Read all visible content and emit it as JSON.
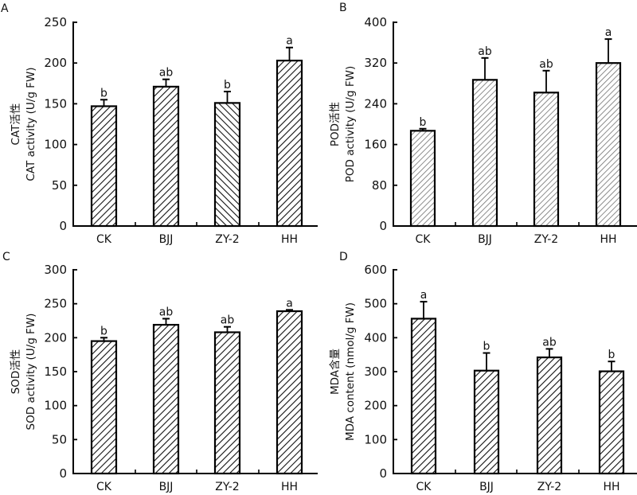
{
  "chart_data": [
    {
      "type": "bar",
      "panel": "A",
      "title": "",
      "categories": [
        "CK",
        "BJJ",
        "ZY-2",
        "HH"
      ],
      "values": [
        147,
        171,
        151,
        203
      ],
      "error_upper": [
        155,
        180,
        165,
        219
      ],
      "significance": [
        "b",
        "ab",
        "b",
        "a"
      ],
      "xlabel": "",
      "ylabel_cn": "CAT活性",
      "ylabel": "CAT activity (U/g FW)",
      "ylim": [
        0,
        250
      ],
      "yticks": [
        0,
        50,
        100,
        150,
        200,
        250
      ],
      "hatch": [
        "back",
        "back",
        "forward",
        "back"
      ],
      "hatch_color": "#111111",
      "grid": false,
      "legend": "none"
    },
    {
      "type": "bar",
      "panel": "B",
      "title": "",
      "categories": [
        "CK",
        "BJJ",
        "ZY-2",
        "HH"
      ],
      "values": [
        187,
        287,
        262,
        320
      ],
      "error_upper": [
        191,
        330,
        305,
        367
      ],
      "significance": [
        "b",
        "ab",
        "ab",
        "a"
      ],
      "xlabel": "",
      "ylabel_cn": "POD活性",
      "ylabel": "POD activity (U/g FW)",
      "ylim": [
        0,
        400
      ],
      "yticks": [
        0,
        80,
        160,
        240,
        320,
        400
      ],
      "hatch": [
        "back",
        "back",
        "back",
        "back"
      ],
      "hatch_color": "#777777",
      "grid": false,
      "legend": "none"
    },
    {
      "type": "bar",
      "panel": "C",
      "title": "",
      "categories": [
        "CK",
        "BJJ",
        "ZY-2",
        "HH"
      ],
      "values": [
        195,
        219,
        208,
        239
      ],
      "error_upper": [
        200,
        228,
        216,
        241
      ],
      "significance": [
        "b",
        "ab",
        "ab",
        "a"
      ],
      "xlabel": "",
      "ylabel_cn": "SOD活性",
      "ylabel": "SOD activity (U/g FW)",
      "ylim": [
        0,
        300
      ],
      "yticks": [
        0,
        50,
        100,
        150,
        200,
        250,
        300
      ],
      "hatch": [
        "back",
        "back",
        "back",
        "back"
      ],
      "hatch_color": "#111111",
      "grid": false,
      "legend": "none"
    },
    {
      "type": "bar",
      "panel": "D",
      "title": "",
      "categories": [
        "CK",
        "BJJ",
        "ZY-2",
        "HH"
      ],
      "values": [
        456,
        303,
        342,
        301
      ],
      "error_upper": [
        506,
        355,
        367,
        330
      ],
      "significance": [
        "a",
        "b",
        "ab",
        "b"
      ],
      "xlabel": "",
      "ylabel_cn": "MDA含量",
      "ylabel": "MDA content (nmol/g FW)",
      "ylim": [
        0,
        600
      ],
      "yticks": [
        0,
        100,
        200,
        300,
        400,
        500,
        600
      ],
      "hatch": [
        "back",
        "back",
        "back",
        "back"
      ],
      "hatch_color": "#111111",
      "grid": false,
      "legend": "none"
    }
  ]
}
